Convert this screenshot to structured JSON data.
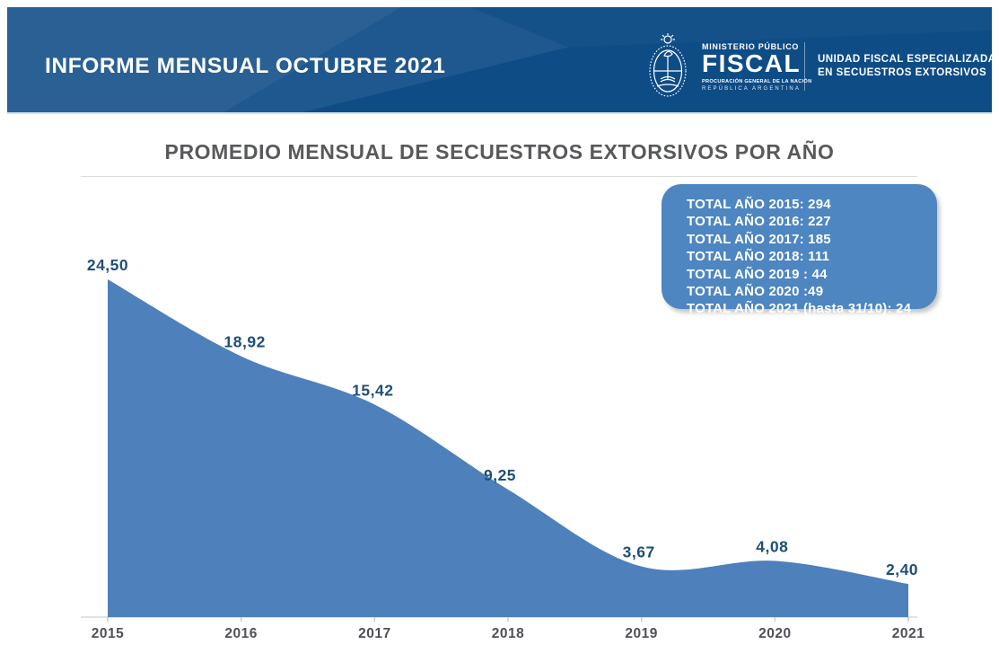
{
  "header": {
    "report_title": "INFORME MENSUAL OCTUBRE 2021",
    "background_color": "#0e4c86",
    "logo": {
      "emblem_icon": "argentina-coat-of-arms",
      "ministry_small": "MINISTERIO PÚBLICO",
      "ministry_big": "FISCAL",
      "ministry_sub1": "PROCURACIÓN GENERAL DE LA NACIÓN",
      "ministry_sub2": "REPÚBLICA ARGENTINA",
      "unit_line1": "UNIDAD FISCAL ESPECIALIZADA",
      "unit_line2": "EN SECUESTROS EXTORSIVOS"
    }
  },
  "main": {
    "title": "PROMEDIO MENSUAL DE SECUESTROS EXTORSIVOS POR AÑO"
  },
  "totals_box": {
    "background_color": "#4e86c1",
    "lines": [
      "TOTAL AÑO 2015: 294",
      "TOTAL AÑO 2016: 227",
      "TOTAL AÑO 2017: 185",
      "TOTAL AÑO 2018: 111",
      "TOTAL AÑO 2019 : 44",
      "TOTAL AÑO 2020 :49",
      "TOTAL AÑO 2021 (hasta 31/10): 24"
    ]
  },
  "chart_data": {
    "type": "area",
    "title": "PROMEDIO MENSUAL DE SECUESTROS EXTORSIVOS POR AÑO",
    "categories": [
      "2015",
      "2016",
      "2017",
      "2018",
      "2019",
      "2020",
      "2021"
    ],
    "values": [
      24.5,
      18.92,
      15.42,
      9.25,
      3.67,
      4.08,
      2.4
    ],
    "point_labels": [
      "24,50",
      "18,92",
      "15,42",
      "9,25",
      "3,67",
      "4,08",
      "2,40"
    ],
    "xlabel": "",
    "ylabel": "",
    "ylim": [
      0,
      26
    ],
    "grid": false,
    "legend": false,
    "smooth": true,
    "fill_color": "#4e80bc",
    "point_label_color": "#1f4e79",
    "axis_color": "#d8d8d8",
    "tick_color": "#c9c9c9",
    "tick_label_color": "#4f4f58"
  }
}
